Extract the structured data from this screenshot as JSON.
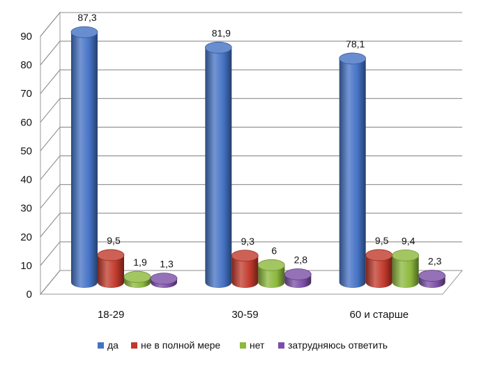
{
  "chart_data": {
    "type": "bar",
    "style": "3d-cylinder",
    "title": "",
    "xlabel": "",
    "ylabel": "",
    "ylim": [
      0,
      90
    ],
    "yticks": [
      "0",
      "10",
      "20",
      "30",
      "40",
      "50",
      "60",
      "70",
      "80",
      "90"
    ],
    "grid": true,
    "legend_position": "bottom",
    "categories": [
      "18-29",
      "30-59",
      "60 и старше"
    ],
    "series": [
      {
        "name": "да",
        "color": "#4472C4",
        "values": [
          87.3,
          81.9,
          78.1
        ],
        "labels": [
          "87,3",
          "81,9",
          "78,1"
        ]
      },
      {
        "name": "не в полной мере",
        "color": "#C0392B",
        "values": [
          9.5,
          9.3,
          9.5
        ],
        "labels": [
          "9,5",
          "9,3",
          "9,5"
        ]
      },
      {
        "name": "нет",
        "color": "#8CB83C",
        "values": [
          1.9,
          6,
          9.4
        ],
        "labels": [
          "1,9",
          "6",
          "9,4"
        ]
      },
      {
        "name": "затрудняюсь ответить",
        "color": "#7B4FA6",
        "values": [
          1.3,
          2.8,
          2.3
        ],
        "labels": [
          "1,3",
          "2,8",
          "2,3"
        ]
      }
    ]
  }
}
